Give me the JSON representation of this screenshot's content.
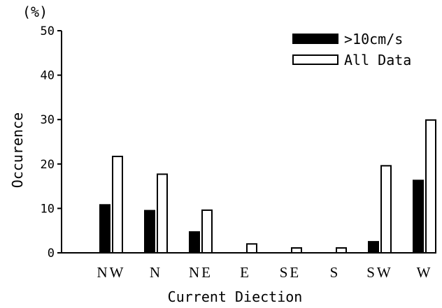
{
  "chart_data": {
    "type": "bar",
    "unit_label": "(%)",
    "xlabel": "Current Diection",
    "ylabel": "Occurence",
    "ylim": [
      0,
      50
    ],
    "yticks": [
      0,
      10,
      20,
      30,
      40,
      50
    ],
    "categories": [
      "NW",
      "N",
      "NE",
      "E",
      "SE",
      "S",
      "SW",
      "W"
    ],
    "series": [
      {
        "name": ">10cm/s",
        "fill": "solid",
        "values": [
          10.8,
          9.5,
          4.7,
          0,
          0,
          0,
          2.5,
          16.3
        ]
      },
      {
        "name": "All Data",
        "fill": "hollow",
        "values": [
          21.7,
          17.7,
          9.6,
          2.0,
          1.1,
          1.1,
          19.6,
          29.9
        ]
      }
    ],
    "legend_position": "top-right",
    "grid": false,
    "colors": {
      "ink": "#000000",
      "background": "#ffffff"
    }
  }
}
